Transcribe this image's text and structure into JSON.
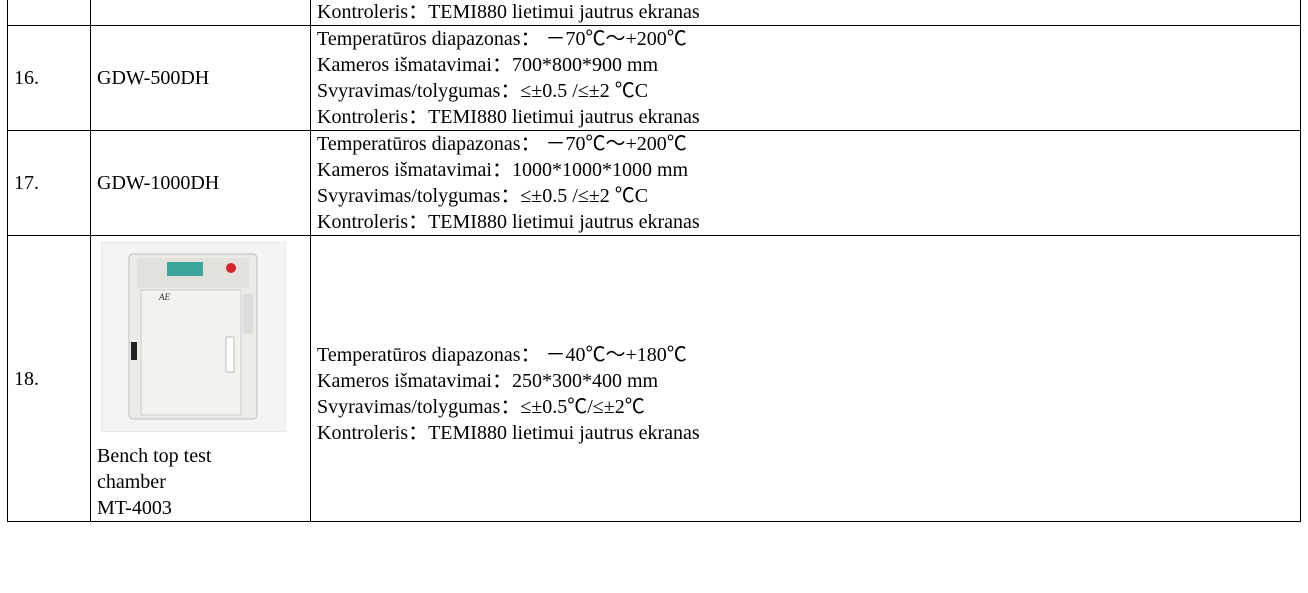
{
  "table": {
    "rows": [
      {
        "details": [
          "Kontroleris：TEMI880 lietimui jautrus ekranas"
        ]
      },
      {
        "number": "16.",
        "model": "GDW-500DH",
        "details": [
          "Temperatūros diapazonas： －70℃～+200℃",
          "Kameros išmatavimai：700*800*900 mm",
          "Svyravimas/tolygumas：≤±0.5 /≤±2 ℃C",
          "Kontroleris：TEMI880 lietimui jautrus ekranas"
        ]
      },
      {
        "number": "17.",
        "model": "GDW-1000DH",
        "details": [
          "Temperatūros diapazonas： －70℃～+200℃",
          "Kameros išmatavimai：1000*1000*1000 mm",
          "Svyravimas/tolygumas：≤±0.5 /≤±2 ℃C",
          "Kontroleris：TEMI880 lietimui jautrus ekranas"
        ]
      },
      {
        "number": "18.",
        "caption": [
          "Bench top test",
          "chamber",
          "MT-4003"
        ],
        "details": [
          "Temperatūros diapazonas： －40℃～+180℃",
          "Kameros išmatavimai：250*300*400 mm",
          "Svyravimas/tolygumas：≤±0.5℃/≤±2℃",
          "Kontroleris：TEMI880 lietimui jautrus ekranas"
        ]
      }
    ]
  }
}
